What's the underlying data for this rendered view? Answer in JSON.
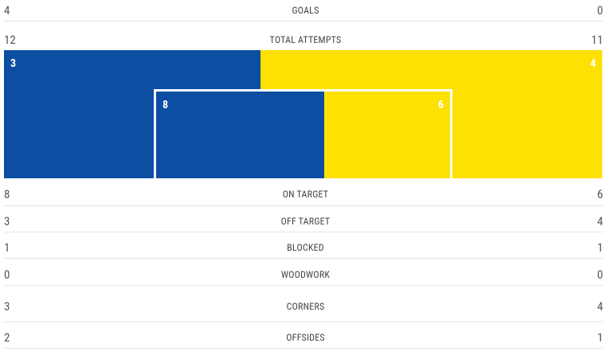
{
  "stats": [
    {
      "label": "GOALS",
      "home": 4,
      "away": 0
    },
    {
      "label": "TOTAL ATTEMPTS",
      "home": 12,
      "away": 11
    },
    {
      "label": "ON TARGET",
      "home": 8,
      "away": 6
    },
    {
      "label": "OFF TARGET",
      "home": 3,
      "away": 4
    },
    {
      "label": "BLOCKED",
      "home": 1,
      "away": 1
    },
    {
      "label": "WOODWORK",
      "home": 0,
      "away": 0
    },
    {
      "label": "CORNERS",
      "home": 3,
      "away": 4
    },
    {
      "label": "OFFSIDES",
      "home": 2,
      "away": 1
    }
  ]
}
